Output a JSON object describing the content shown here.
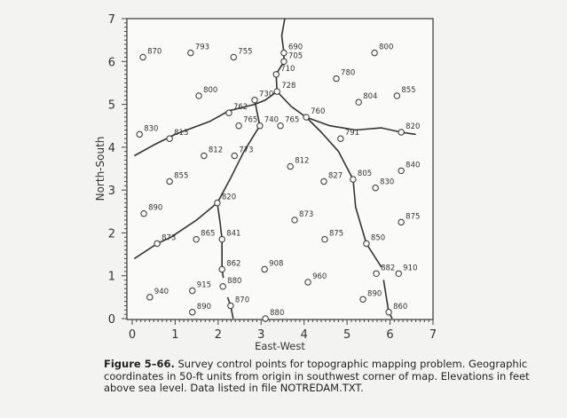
{
  "chart_data": {
    "type": "scatter",
    "xlabel": "East-West",
    "ylabel": "North-South",
    "xlim": [
      0,
      7
    ],
    "ylim": [
      0,
      7
    ],
    "xticks": [
      "0",
      "1",
      "2",
      "3",
      "4",
      "5",
      "6",
      "7"
    ],
    "yticks": [
      "0",
      "1",
      "2",
      "3",
      "4",
      "5",
      "6",
      "7"
    ],
    "grid": false,
    "marker": "open-circle",
    "points": [
      {
        "x": 0.25,
        "y": 6.1,
        "label": "870"
      },
      {
        "x": 1.36,
        "y": 6.2,
        "label": "793"
      },
      {
        "x": 2.36,
        "y": 6.1,
        "label": "755"
      },
      {
        "x": 3.53,
        "y": 6.2,
        "label": "690"
      },
      {
        "x": 3.53,
        "y": 6.0,
        "label": "705"
      },
      {
        "x": 3.35,
        "y": 5.7,
        "label": "710"
      },
      {
        "x": 5.64,
        "y": 6.2,
        "label": "800"
      },
      {
        "x": 4.75,
        "y": 5.6,
        "label": "780"
      },
      {
        "x": 6.16,
        "y": 5.2,
        "label": "855"
      },
      {
        "x": 5.27,
        "y": 5.05,
        "label": "804"
      },
      {
        "x": 1.55,
        "y": 5.2,
        "label": "800"
      },
      {
        "x": 2.85,
        "y": 5.1,
        "label": "730"
      },
      {
        "x": 3.37,
        "y": 5.3,
        "label": "728"
      },
      {
        "x": 2.25,
        "y": 4.8,
        "label": "762"
      },
      {
        "x": 2.48,
        "y": 4.5,
        "label": "765"
      },
      {
        "x": 2.97,
        "y": 4.5,
        "label": "740"
      },
      {
        "x": 3.45,
        "y": 4.5,
        "label": "765"
      },
      {
        "x": 4.05,
        "y": 4.7,
        "label": "760"
      },
      {
        "x": 6.26,
        "y": 4.35,
        "label": "820"
      },
      {
        "x": 4.85,
        "y": 4.2,
        "label": "791"
      },
      {
        "x": 0.17,
        "y": 4.3,
        "label": "830"
      },
      {
        "x": 0.87,
        "y": 4.2,
        "label": "813"
      },
      {
        "x": 1.67,
        "y": 3.8,
        "label": "812"
      },
      {
        "x": 2.38,
        "y": 3.8,
        "label": "773"
      },
      {
        "x": 3.68,
        "y": 3.55,
        "label": "812"
      },
      {
        "x": 4.46,
        "y": 3.2,
        "label": "827"
      },
      {
        "x": 5.14,
        "y": 3.25,
        "label": "805"
      },
      {
        "x": 5.66,
        "y": 3.05,
        "label": "830"
      },
      {
        "x": 6.26,
        "y": 3.45,
        "label": "840"
      },
      {
        "x": 0.87,
        "y": 3.2,
        "label": "855"
      },
      {
        "x": 0.27,
        "y": 2.45,
        "label": "890"
      },
      {
        "x": 1.98,
        "y": 2.7,
        "label": "820"
      },
      {
        "x": 3.78,
        "y": 2.3,
        "label": "873"
      },
      {
        "x": 6.26,
        "y": 2.25,
        "label": "875"
      },
      {
        "x": 1.49,
        "y": 1.85,
        "label": "865"
      },
      {
        "x": 2.09,
        "y": 1.85,
        "label": "841"
      },
      {
        "x": 4.48,
        "y": 1.85,
        "label": "875"
      },
      {
        "x": 5.45,
        "y": 1.75,
        "label": "850"
      },
      {
        "x": 0.58,
        "y": 1.75,
        "label": "873"
      },
      {
        "x": 2.09,
        "y": 1.15,
        "label": "862"
      },
      {
        "x": 3.08,
        "y": 1.15,
        "label": "908"
      },
      {
        "x": 5.68,
        "y": 1.05,
        "label": "882"
      },
      {
        "x": 6.2,
        "y": 1.05,
        "label": "910"
      },
      {
        "x": 4.09,
        "y": 0.85,
        "label": "960"
      },
      {
        "x": 0.41,
        "y": 0.5,
        "label": "940"
      },
      {
        "x": 1.4,
        "y": 0.65,
        "label": "915"
      },
      {
        "x": 2.11,
        "y": 0.75,
        "label": "880"
      },
      {
        "x": 5.37,
        "y": 0.45,
        "label": "890"
      },
      {
        "x": 2.29,
        "y": 0.3,
        "label": "870"
      },
      {
        "x": 1.4,
        "y": 0.15,
        "label": "890"
      },
      {
        "x": 5.97,
        "y": 0.15,
        "label": "860"
      },
      {
        "x": 3.1,
        "y": 0.0,
        "label": "880"
      }
    ],
    "streams": [
      [
        [
          3.55,
          7
        ],
        [
          3.48,
          6.6
        ],
        [
          3.53,
          6.2
        ],
        [
          3.53,
          6.0
        ],
        [
          3.35,
          5.7
        ],
        [
          3.37,
          5.3
        ],
        [
          3.7,
          4.95
        ],
        [
          4.05,
          4.7
        ],
        [
          4.4,
          4.35
        ],
        [
          4.8,
          3.9
        ],
        [
          5.14,
          3.25
        ],
        [
          5.2,
          2.6
        ],
        [
          5.45,
          1.75
        ],
        [
          5.8,
          1.2
        ]
      ],
      [
        [
          5.85,
          0.9
        ],
        [
          5.97,
          0.15
        ],
        [
          6.05,
          0
        ]
      ],
      [
        [
          4.05,
          4.7
        ],
        [
          4.6,
          4.5
        ],
        [
          5.2,
          4.4
        ],
        [
          5.8,
          4.45
        ],
        [
          6.26,
          4.35
        ],
        [
          6.6,
          4.3
        ]
      ],
      [
        [
          3.37,
          5.3
        ],
        [
          3.1,
          5.1
        ],
        [
          2.85,
          5.0
        ],
        [
          2.25,
          4.85
        ],
        [
          1.8,
          4.6
        ],
        [
          1.0,
          4.3
        ],
        [
          0.5,
          4.05
        ],
        [
          0.05,
          3.8
        ]
      ],
      [
        [
          2.85,
          5.1
        ],
        [
          2.97,
          4.5
        ],
        [
          2.6,
          3.9
        ],
        [
          2.3,
          3.3
        ],
        [
          1.98,
          2.7
        ],
        [
          1.5,
          2.3
        ],
        [
          0.9,
          1.9
        ],
        [
          0.58,
          1.75
        ],
        [
          0.05,
          1.4
        ]
      ],
      [
        [
          1.98,
          2.7
        ],
        [
          2.05,
          2.2
        ],
        [
          2.09,
          1.85
        ],
        [
          2.09,
          1.15
        ],
        [
          2.12,
          0.95
        ]
      ],
      [
        [
          2.22,
          0.5
        ],
        [
          2.29,
          0.3
        ],
        [
          2.35,
          0
        ]
      ]
    ]
  },
  "caption": {
    "lead": "Figure 5–66.",
    "text": "Survey control points for topographic mapping problem. Geographic coordinates in 50-ft units from origin in southwest corner of map. Elevations in feet above sea level. Data listed in file NOTREDAM.TXT."
  }
}
